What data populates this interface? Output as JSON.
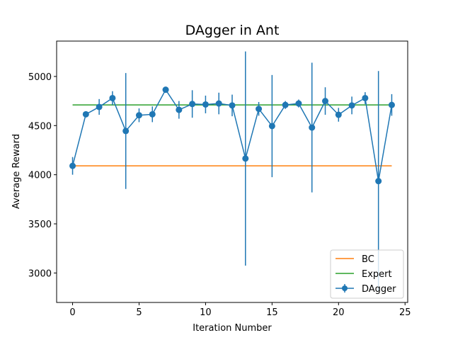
{
  "chart_data": {
    "type": "line",
    "title": "DAgger in Ant",
    "xlabel": "Iteration Number",
    "ylabel": "Average Reward",
    "xlim": [
      -1.2,
      25.2
    ],
    "ylim": [
      2700,
      5360
    ],
    "xticks": [
      0,
      5,
      10,
      15,
      20,
      25
    ],
    "yticks": [
      3000,
      3500,
      4000,
      4500,
      5000
    ],
    "grid": false,
    "legend_position": "lower-right",
    "series": [
      {
        "name": "BC",
        "kind": "hline",
        "color": "#ff7f0e",
        "x": [
          0,
          24
        ],
        "y": [
          4090,
          4090
        ]
      },
      {
        "name": "Expert",
        "kind": "hline",
        "color": "#2ca02c",
        "x": [
          0,
          24
        ],
        "y": [
          4710,
          4710
        ]
      },
      {
        "name": "DAgger",
        "kind": "errorbar",
        "color": "#1f77b4",
        "x": [
          0,
          1,
          2,
          3,
          4,
          5,
          6,
          7,
          8,
          9,
          10,
          11,
          12,
          13,
          14,
          15,
          16,
          17,
          18,
          19,
          20,
          21,
          22,
          23,
          24
        ],
        "y": [
          4090,
          4615,
          4690,
          4780,
          4445,
          4605,
          4615,
          4865,
          4660,
          4720,
          4715,
          4725,
          4705,
          4165,
          4670,
          4495,
          4710,
          4725,
          4480,
          4750,
          4610,
          4705,
          4780,
          3935,
          4710
        ],
        "yerr": [
          90,
          0,
          80,
          70,
          590,
          70,
          80,
          0,
          90,
          140,
          90,
          110,
          110,
          1090,
          70,
          520,
          40,
          40,
          660,
          140,
          70,
          90,
          60,
          1120,
          110
        ]
      }
    ]
  }
}
